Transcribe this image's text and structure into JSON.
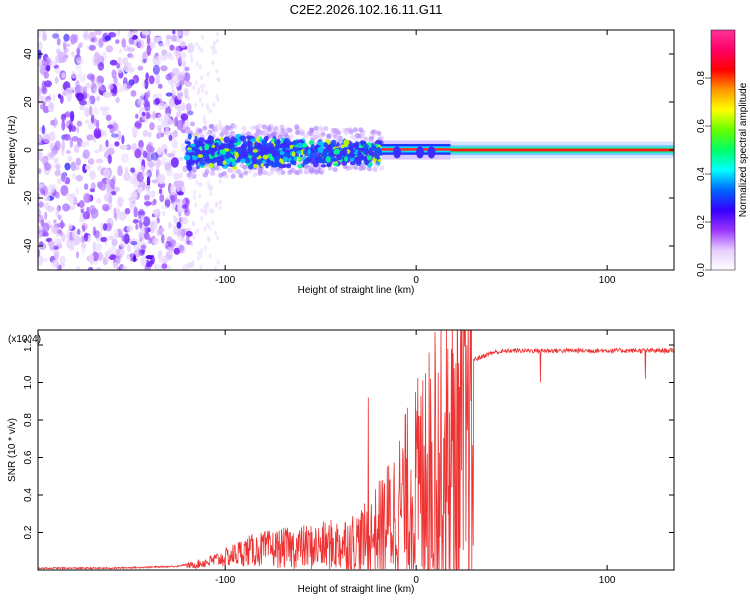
{
  "title": "C2E2.2026.102.16.11.G11",
  "chart_data": [
    {
      "type": "heatmap",
      "title": "C2E2.2026.102.16.11.G11",
      "xlabel": "Height of straight line (km)",
      "ylabel": "Frequency (Hz)",
      "xlim": [
        -198,
        135
      ],
      "ylim": [
        -50,
        50
      ],
      "xticks": [
        -100,
        0,
        100
      ],
      "yticks": [
        -40,
        -20,
        0,
        20,
        40
      ],
      "colorbar": {
        "label": "Normalized spectral amplitude",
        "range": [
          0,
          1
        ],
        "ticks": [
          0.0,
          0.2,
          0.4,
          0.6,
          0.8
        ],
        "colors": [
          "#ffffff",
          "#e6ccff",
          "#9933ff",
          "#3300ff",
          "#0066ff",
          "#00ffff",
          "#00ff66",
          "#66ff00",
          "#ffff00",
          "#ff9900",
          "#ff0000",
          "#ff0066",
          "#ff3399"
        ]
      },
      "regions": [
        {
          "x_range": [
            -198,
            -118
          ],
          "freq_range": [
            -50,
            50
          ],
          "description": "broadband noise",
          "amplitude": 0.15
        },
        {
          "x_range": [
            -120,
            -18
          ],
          "freq_range": [
            -12,
            10
          ],
          "description": "scattered signal",
          "amplitude": 0.45
        },
        {
          "x_range": [
            -18,
            18
          ],
          "freq_range": [
            -2,
            3
          ],
          "description": "narrow signal with dips",
          "amplitude": 0.85
        },
        {
          "x_range": [
            18,
            135
          ],
          "freq_range": [
            -1,
            1
          ],
          "description": "stable tone",
          "amplitude": 1.0
        }
      ]
    },
    {
      "type": "line",
      "title": "",
      "xlabel": "Height of straight line (km)",
      "ylabel": "SNR (10 * v/v)",
      "yscale_note": "(x10^4)",
      "xlim": [
        -198,
        135
      ],
      "ylim": [
        0,
        1.28
      ],
      "xticks": [
        -100,
        0,
        100
      ],
      "yticks": [
        0.2,
        0.4,
        0.6,
        0.8,
        1.0,
        1.2
      ],
      "series": [
        {
          "name": "SNR",
          "color": "#ee3333",
          "x": [
            -198,
            -160,
            -140,
            -125,
            -115,
            -100,
            -90,
            -80,
            -70,
            -60,
            -50,
            -40,
            -30,
            -25,
            -20,
            -15,
            -10,
            -5,
            0,
            5,
            10,
            15,
            20,
            25,
            30,
            35,
            40,
            50,
            60,
            70,
            80,
            90,
            100,
            110,
            120,
            130,
            135
          ],
          "values": [
            0.01,
            0.01,
            0.015,
            0.02,
            0.04,
            0.09,
            0.14,
            0.16,
            0.17,
            0.18,
            0.19,
            0.21,
            0.24,
            0.27,
            0.34,
            0.42,
            0.52,
            0.62,
            0.72,
            0.82,
            0.9,
            0.96,
            1.03,
            1.09,
            1.12,
            1.14,
            1.16,
            1.17,
            1.17,
            1.17,
            1.17,
            1.17,
            1.17,
            1.17,
            1.17,
            1.17,
            1.17
          ]
        }
      ]
    }
  ]
}
